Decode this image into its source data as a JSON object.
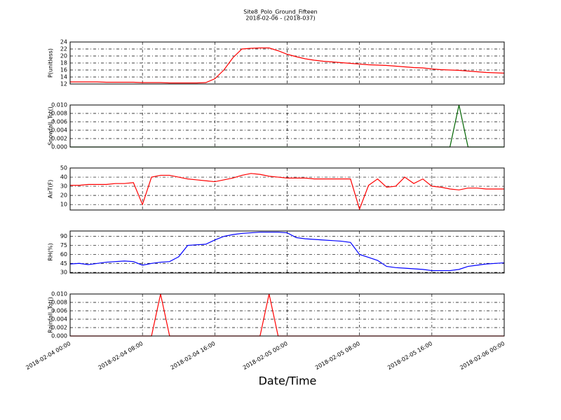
{
  "chart_data": {
    "type": "line",
    "title": "Site8_Polo_Ground_Fifteen",
    "subtitle": "2018-02-06 - (2018-037)",
    "xlabel": "Date/Time",
    "x": [
      "2018-02-04 00:00",
      "2018-02-04 01:00",
      "2018-02-04 02:00",
      "2018-02-04 03:00",
      "2018-02-04 04:00",
      "2018-02-04 05:00",
      "2018-02-04 06:00",
      "2018-02-04 07:00",
      "2018-02-04 08:00",
      "2018-02-04 09:00",
      "2018-02-04 10:00",
      "2018-02-04 11:00",
      "2018-02-04 12:00",
      "2018-02-04 13:00",
      "2018-02-04 14:00",
      "2018-02-04 15:00",
      "2018-02-04 16:00",
      "2018-02-04 17:00",
      "2018-02-04 18:00",
      "2018-02-04 19:00",
      "2018-02-04 20:00",
      "2018-02-04 21:00",
      "2018-02-04 22:00",
      "2018-02-04 23:00",
      "2018-02-05 00:00",
      "2018-02-05 01:00",
      "2018-02-05 02:00",
      "2018-02-05 03:00",
      "2018-02-05 04:00",
      "2018-02-05 05:00",
      "2018-02-05 06:00",
      "2018-02-05 07:00",
      "2018-02-05 08:00",
      "2018-02-05 09:00",
      "2018-02-05 10:00",
      "2018-02-05 11:00",
      "2018-02-05 12:00",
      "2018-02-05 13:00",
      "2018-02-05 14:00",
      "2018-02-05 15:00",
      "2018-02-05 16:00",
      "2018-02-05 17:00",
      "2018-02-05 18:00",
      "2018-02-05 19:00",
      "2018-02-05 20:00",
      "2018-02-05 21:00",
      "2018-02-05 22:00",
      "2018-02-05 23:00",
      "2018-02-06 00:00"
    ],
    "xlim": [
      "2018-02-04 00:00",
      "2018-02-06 00:00"
    ],
    "xticks": [
      "2018-02-04 00:00",
      "2018-02-04 08:00",
      "2018-02-04 16:00",
      "2018-02-05 00:00",
      "2018-02-05 08:00",
      "2018-02-05 16:00",
      "2018-02-06 00:00"
    ],
    "grid": true,
    "panels": [
      {
        "ylabel": "P(unitless)",
        "color": "#ff0000",
        "ylim": [
          12,
          24
        ],
        "yticks": [
          12,
          14,
          16,
          18,
          20,
          22,
          24
        ],
        "values": [
          12.6,
          12.6,
          12.6,
          12.6,
          12.5,
          12.5,
          12.5,
          12.5,
          12.4,
          12.4,
          12.4,
          12.3,
          12.3,
          12.3,
          12.3,
          12.4,
          13.5,
          16,
          19.5,
          22,
          22.2,
          22.3,
          22.3,
          21.5,
          20.5,
          19.8,
          19.2,
          18.8,
          18.5,
          18.3,
          18.1,
          17.9,
          17.7,
          17.5,
          17.4,
          17.3,
          17.1,
          16.9,
          16.7,
          16.6,
          16.3,
          16.1,
          16.0,
          15.9,
          15.7,
          15.5,
          15.3,
          15.2,
          15.1
        ]
      },
      {
        "ylabel": "Snowfall_Tot()",
        "color": "#006400",
        "ylim": [
          0,
          0.01
        ],
        "yticks": [
          {
            "value": 0,
            "label": "0.000"
          },
          {
            "value": 0.002,
            "label": "0.002"
          },
          {
            "value": 0.004,
            "label": "0.004"
          },
          {
            "value": 0.006,
            "label": "0.006"
          },
          {
            "value": 0.008,
            "label": "0.008"
          },
          {
            "value": 0.01,
            "label": "0.010"
          }
        ],
        "values": [
          0,
          0,
          0,
          0,
          0,
          0,
          0,
          0,
          0,
          0,
          0,
          0,
          0,
          0,
          0,
          0,
          0,
          0,
          0,
          0,
          0,
          0,
          0,
          0,
          0,
          0,
          0,
          0,
          0,
          0,
          0,
          0,
          0,
          0,
          0,
          0,
          0,
          0,
          0,
          0,
          0,
          0,
          0,
          0.01,
          0,
          0,
          0,
          0,
          0
        ]
      },
      {
        "ylabel": "AirT(F)",
        "color": "#ff0000",
        "ylim": [
          4,
          50
        ],
        "yticks": [
          10,
          20,
          30,
          40,
          50
        ],
        "values": [
          31,
          31,
          32,
          32,
          32,
          33,
          33,
          34,
          10,
          40,
          42,
          42,
          40,
          38,
          37,
          36,
          35,
          37,
          39,
          42,
          44,
          43,
          41,
          40,
          39,
          39,
          39,
          38,
          38,
          38,
          38,
          38,
          5,
          31,
          38,
          29,
          30,
          40,
          33,
          38,
          30,
          29,
          27,
          26,
          28,
          28,
          27,
          27,
          27
        ]
      },
      {
        "ylabel": "RH(%)",
        "color": "#0000ff",
        "ylim": [
          29,
          99
        ],
        "yticks": [
          30,
          45,
          60,
          75,
          90
        ],
        "values": [
          44,
          45,
          43,
          45,
          47,
          48,
          49,
          48,
          42,
          45,
          47,
          48,
          56,
          75,
          76,
          77,
          84,
          90,
          93,
          95,
          96,
          97,
          97,
          97,
          96,
          88,
          86,
          85,
          84,
          83,
          82,
          80,
          60,
          55,
          50,
          40,
          38,
          37,
          36,
          35,
          33,
          33,
          33,
          35,
          40,
          42,
          44,
          45,
          46
        ]
      },
      {
        "ylabel": "Rainfall_Tot()",
        "color": "#ff0000",
        "ylim": [
          0,
          0.01
        ],
        "yticks": [
          {
            "value": 0,
            "label": "0.000"
          },
          {
            "value": 0.002,
            "label": "0.002"
          },
          {
            "value": 0.004,
            "label": "0.004"
          },
          {
            "value": 0.006,
            "label": "0.006"
          },
          {
            "value": 0.008,
            "label": "0.008"
          },
          {
            "value": 0.01,
            "label": "0.010"
          }
        ],
        "values": [
          0,
          0,
          0,
          0,
          0,
          0,
          0,
          0,
          0,
          0,
          0.01,
          0,
          0,
          0,
          0,
          0,
          0,
          0,
          0,
          0,
          0,
          0,
          0.01,
          0,
          0,
          0,
          0,
          0,
          0,
          0,
          0,
          0,
          0,
          0,
          0,
          0,
          0,
          0,
          0,
          0,
          0,
          0,
          0,
          0,
          0,
          0,
          0,
          0,
          0
        ]
      }
    ]
  }
}
